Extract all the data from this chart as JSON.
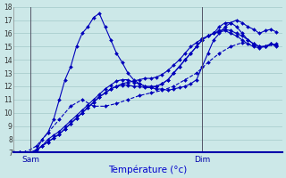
{
  "xlabel": "Température (°c)",
  "ylim": [
    7,
    18
  ],
  "xlim": [
    0,
    47
  ],
  "background_color": "#cce8e8",
  "grid_color": "#aacece",
  "line_color": "#0000bb",
  "vline_sam": 3,
  "vline_dim": 33,
  "yticks": [
    7,
    8,
    9,
    10,
    11,
    12,
    13,
    14,
    15,
    16,
    17,
    18
  ],
  "s1_x": [
    0,
    1,
    2,
    3,
    4,
    5,
    6,
    7,
    8,
    9,
    10,
    11,
    12,
    13,
    14,
    15,
    16,
    17,
    18,
    19,
    20,
    21,
    22,
    23,
    24,
    25,
    26,
    27,
    28,
    29,
    30,
    31,
    32,
    33,
    34,
    35,
    36,
    37,
    38,
    39,
    40,
    41,
    42,
    43,
    44,
    45,
    46
  ],
  "s1_y": [
    7,
    7,
    7,
    7,
    7.2,
    8,
    8.5,
    9.5,
    11,
    12.5,
    13.5,
    15,
    16,
    16.5,
    17.2,
    17.5,
    16.5,
    15.5,
    14.5,
    13.8,
    13,
    12.5,
    12.2,
    12,
    11.9,
    11.8,
    11.8,
    11.7,
    11.8,
    11.9,
    12,
    12.2,
    12.5,
    13.5,
    14.5,
    15.5,
    16,
    16.5,
    16.8,
    17,
    16.8,
    16.5,
    16.3,
    16,
    16.2,
    16.3,
    16.1
  ],
  "s2_x": [
    0,
    1,
    2,
    3,
    4,
    5,
    6,
    7,
    8,
    9,
    10,
    11,
    12,
    13,
    14,
    15,
    16,
    17,
    18,
    19,
    20,
    21,
    22,
    23,
    24,
    25,
    26,
    27,
    28,
    29,
    30,
    31,
    32,
    33,
    34,
    35,
    36,
    37,
    38,
    39,
    40,
    41,
    42,
    43,
    44,
    45,
    46
  ],
  "s2_y": [
    7,
    7,
    7,
    7,
    7.2,
    7.5,
    8,
    8.3,
    8.6,
    9,
    9.4,
    9.8,
    10.2,
    10.6,
    11,
    11.4,
    11.8,
    12.1,
    12.4,
    12.5,
    12.5,
    12.3,
    12.2,
    12,
    12,
    12,
    12.2,
    12.5,
    13,
    13.5,
    14,
    14.5,
    15,
    15.5,
    15.8,
    16,
    16.5,
    16.8,
    16.8,
    16.5,
    16,
    15.5,
    15.2,
    15,
    15,
    15.2,
    15
  ],
  "s3_x": [
    0,
    1,
    2,
    3,
    4,
    5,
    6,
    7,
    8,
    9,
    10,
    11,
    12,
    13,
    14,
    15,
    16,
    17,
    18,
    19,
    20,
    21,
    22,
    23,
    24,
    25,
    26,
    27,
    28,
    29,
    30,
    31,
    32,
    33,
    34,
    35,
    36,
    37,
    38,
    39,
    40,
    41,
    42,
    43,
    44,
    45,
    46
  ],
  "s3_y": [
    7,
    7,
    7,
    7,
    7.2,
    7.5,
    7.8,
    8.1,
    8.4,
    8.8,
    9.2,
    9.6,
    10,
    10.4,
    10.8,
    11.2,
    11.5,
    11.8,
    12,
    12.1,
    12.1,
    12,
    12,
    11.9,
    11.9,
    12,
    12.2,
    12.5,
    13,
    13.5,
    14,
    14.5,
    15,
    15.5,
    15.8,
    16,
    16.2,
    16.3,
    16.2,
    16,
    15.8,
    15.5,
    15.2,
    15,
    15,
    15.2,
    15.1
  ],
  "s4_x": [
    0,
    1,
    2,
    3,
    4,
    5,
    6,
    7,
    8,
    9,
    10,
    11,
    12,
    13,
    14,
    15,
    16,
    17,
    18,
    19,
    20,
    21,
    22,
    23,
    24,
    25,
    26,
    27,
    28,
    29,
    30,
    31,
    32,
    33,
    34,
    35,
    36,
    37,
    38,
    39,
    40,
    41,
    42,
    43,
    44,
    45,
    46
  ],
  "s4_y": [
    7,
    7,
    7,
    7,
    7.2,
    7.5,
    7.8,
    8.1,
    8.4,
    8.8,
    9.2,
    9.6,
    10,
    10.4,
    10.8,
    11.2,
    11.5,
    11.8,
    12,
    12.2,
    12.3,
    12.4,
    12.5,
    12.6,
    12.6,
    12.7,
    12.9,
    13.2,
    13.6,
    14,
    14.5,
    15,
    15.3,
    15.6,
    15.8,
    16,
    16.1,
    16.2,
    16,
    15.8,
    15.5,
    15.2,
    15,
    14.9,
    15,
    15.2,
    15.1
  ],
  "s5_x": [
    0,
    2,
    4,
    6,
    8,
    10,
    12,
    14,
    16,
    18,
    20,
    22,
    24,
    26,
    28,
    30,
    32,
    34,
    36,
    38,
    40,
    42,
    44,
    46
  ],
  "s5_y": [
    7,
    7,
    7.5,
    8.5,
    9.5,
    10.5,
    11,
    10.5,
    10.5,
    10.7,
    11,
    11.3,
    11.5,
    11.7,
    12,
    12.5,
    13,
    13.8,
    14.5,
    15,
    15.3,
    15.1,
    15,
    15.2
  ]
}
